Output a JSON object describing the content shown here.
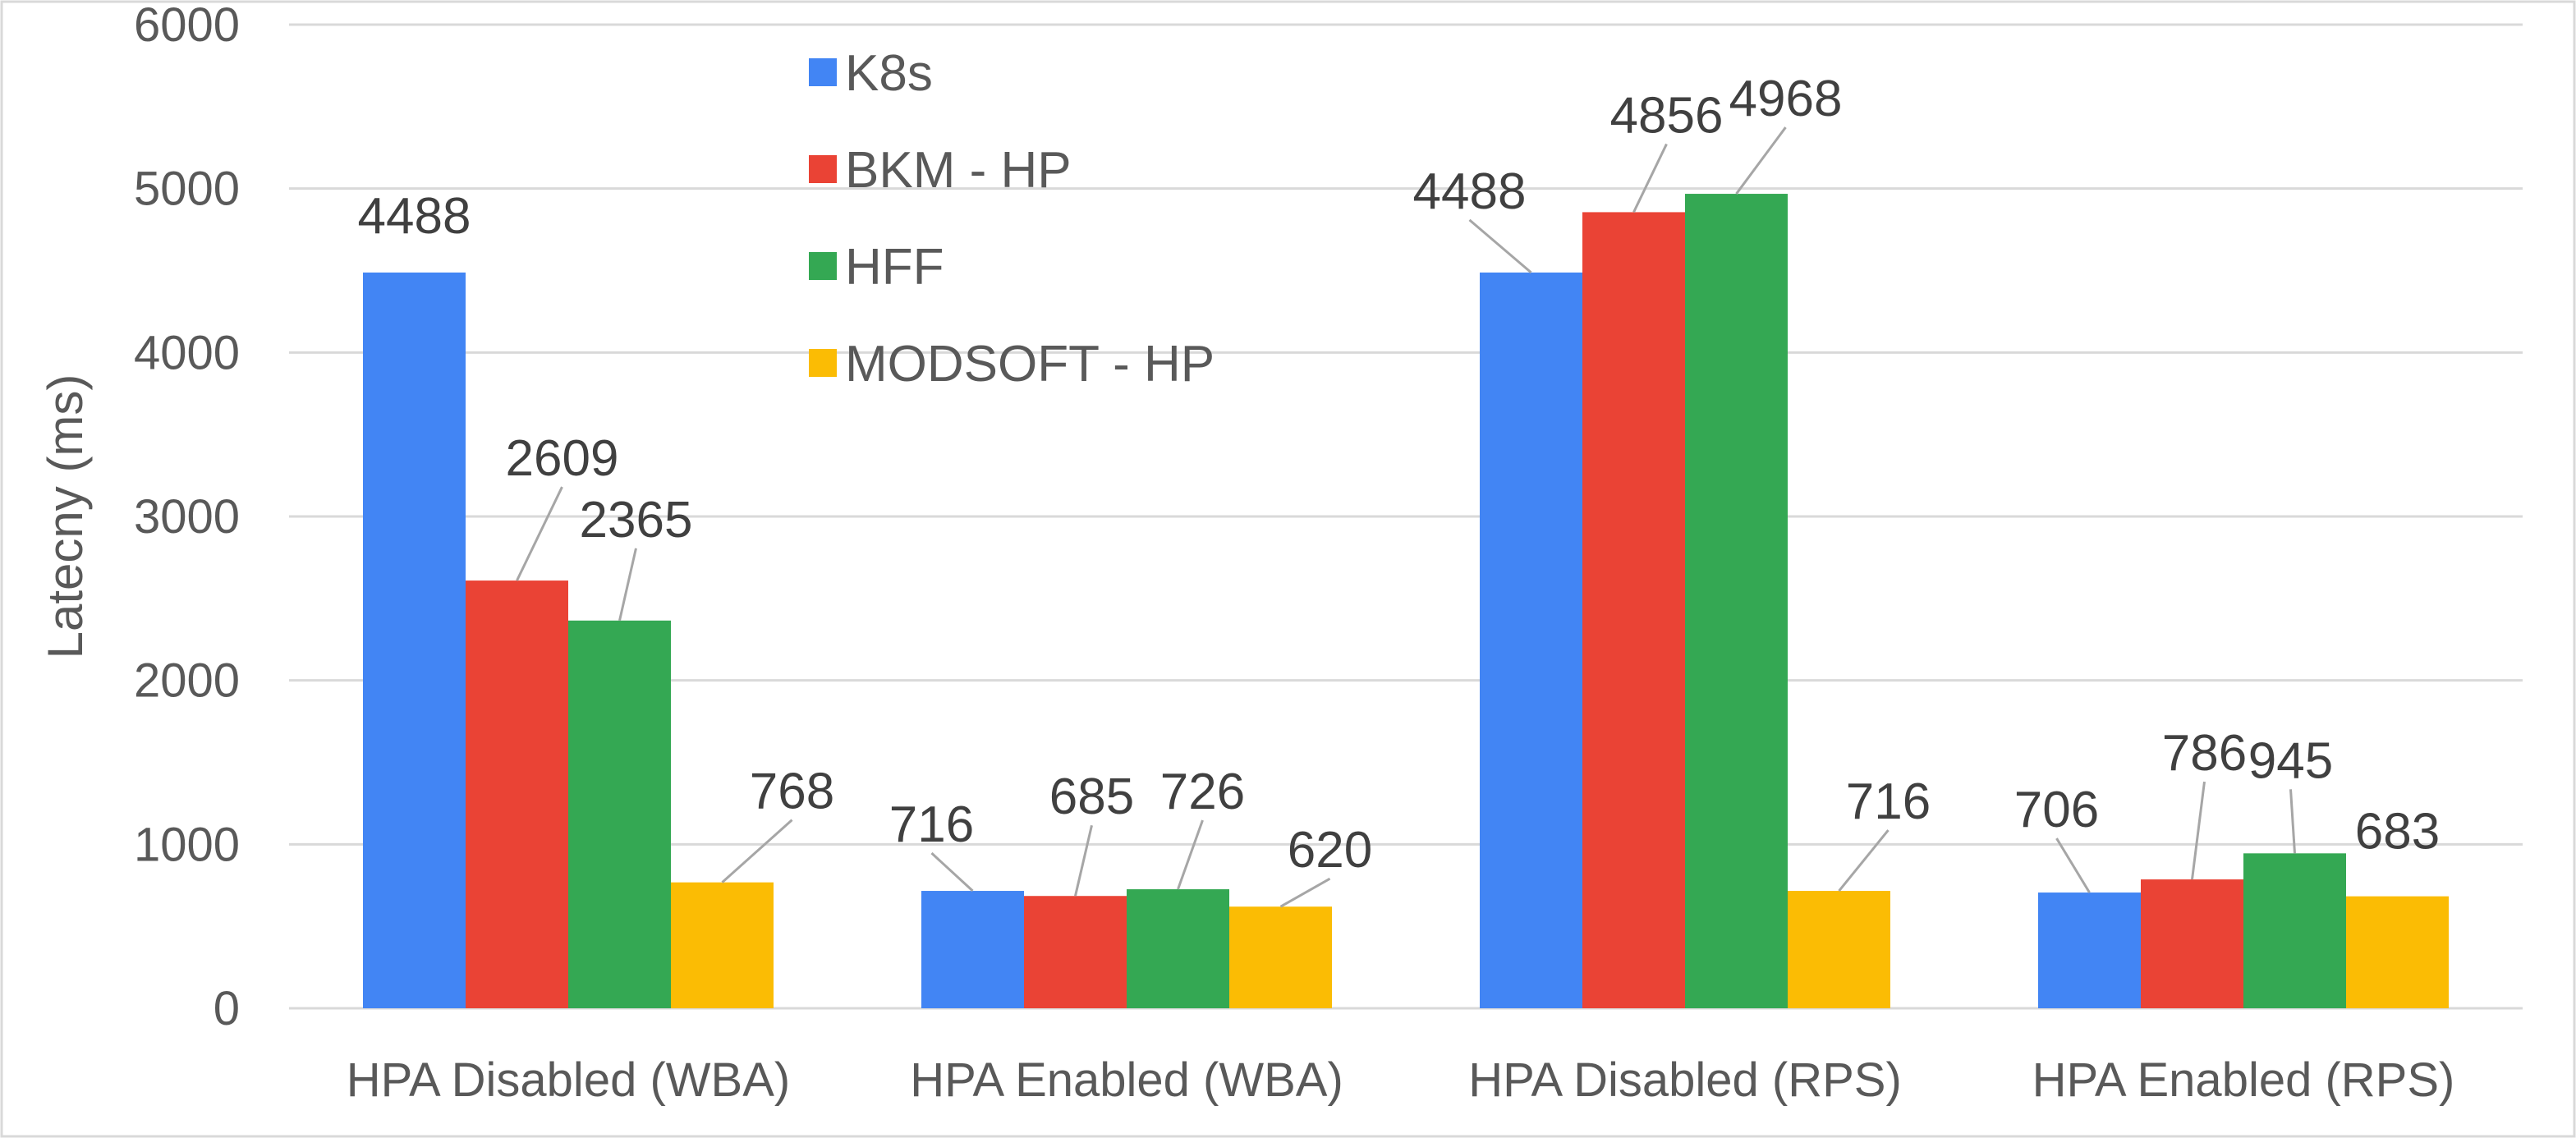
{
  "chart_data": {
    "type": "bar",
    "title": "",
    "xlabel": "",
    "ylabel": "Latecny (ms)",
    "ylim": [
      0,
      6000
    ],
    "yticks": [
      0,
      1000,
      2000,
      3000,
      4000,
      5000,
      6000
    ],
    "grid": true,
    "legend_position": "top-left inside plot",
    "categories": [
      "HPA Disabled (WBA)",
      "HPA Enabled (WBA)",
      "HPA Disabled (RPS)",
      "HPA Enabled (RPS)"
    ],
    "series": [
      {
        "name": "K8s",
        "color": "#4285F4",
        "values": [
          4488,
          716,
          4488,
          706
        ]
      },
      {
        "name": "BKM - HP",
        "color": "#EA4335",
        "values": [
          2609,
          685,
          4856,
          786
        ]
      },
      {
        "name": "HFF",
        "color": "#34A853",
        "values": [
          2365,
          726,
          4968,
          945
        ]
      },
      {
        "name": "MODSOFT - HP",
        "color": "#FBBC04",
        "values": [
          768,
          620,
          716,
          683
        ]
      }
    ]
  }
}
